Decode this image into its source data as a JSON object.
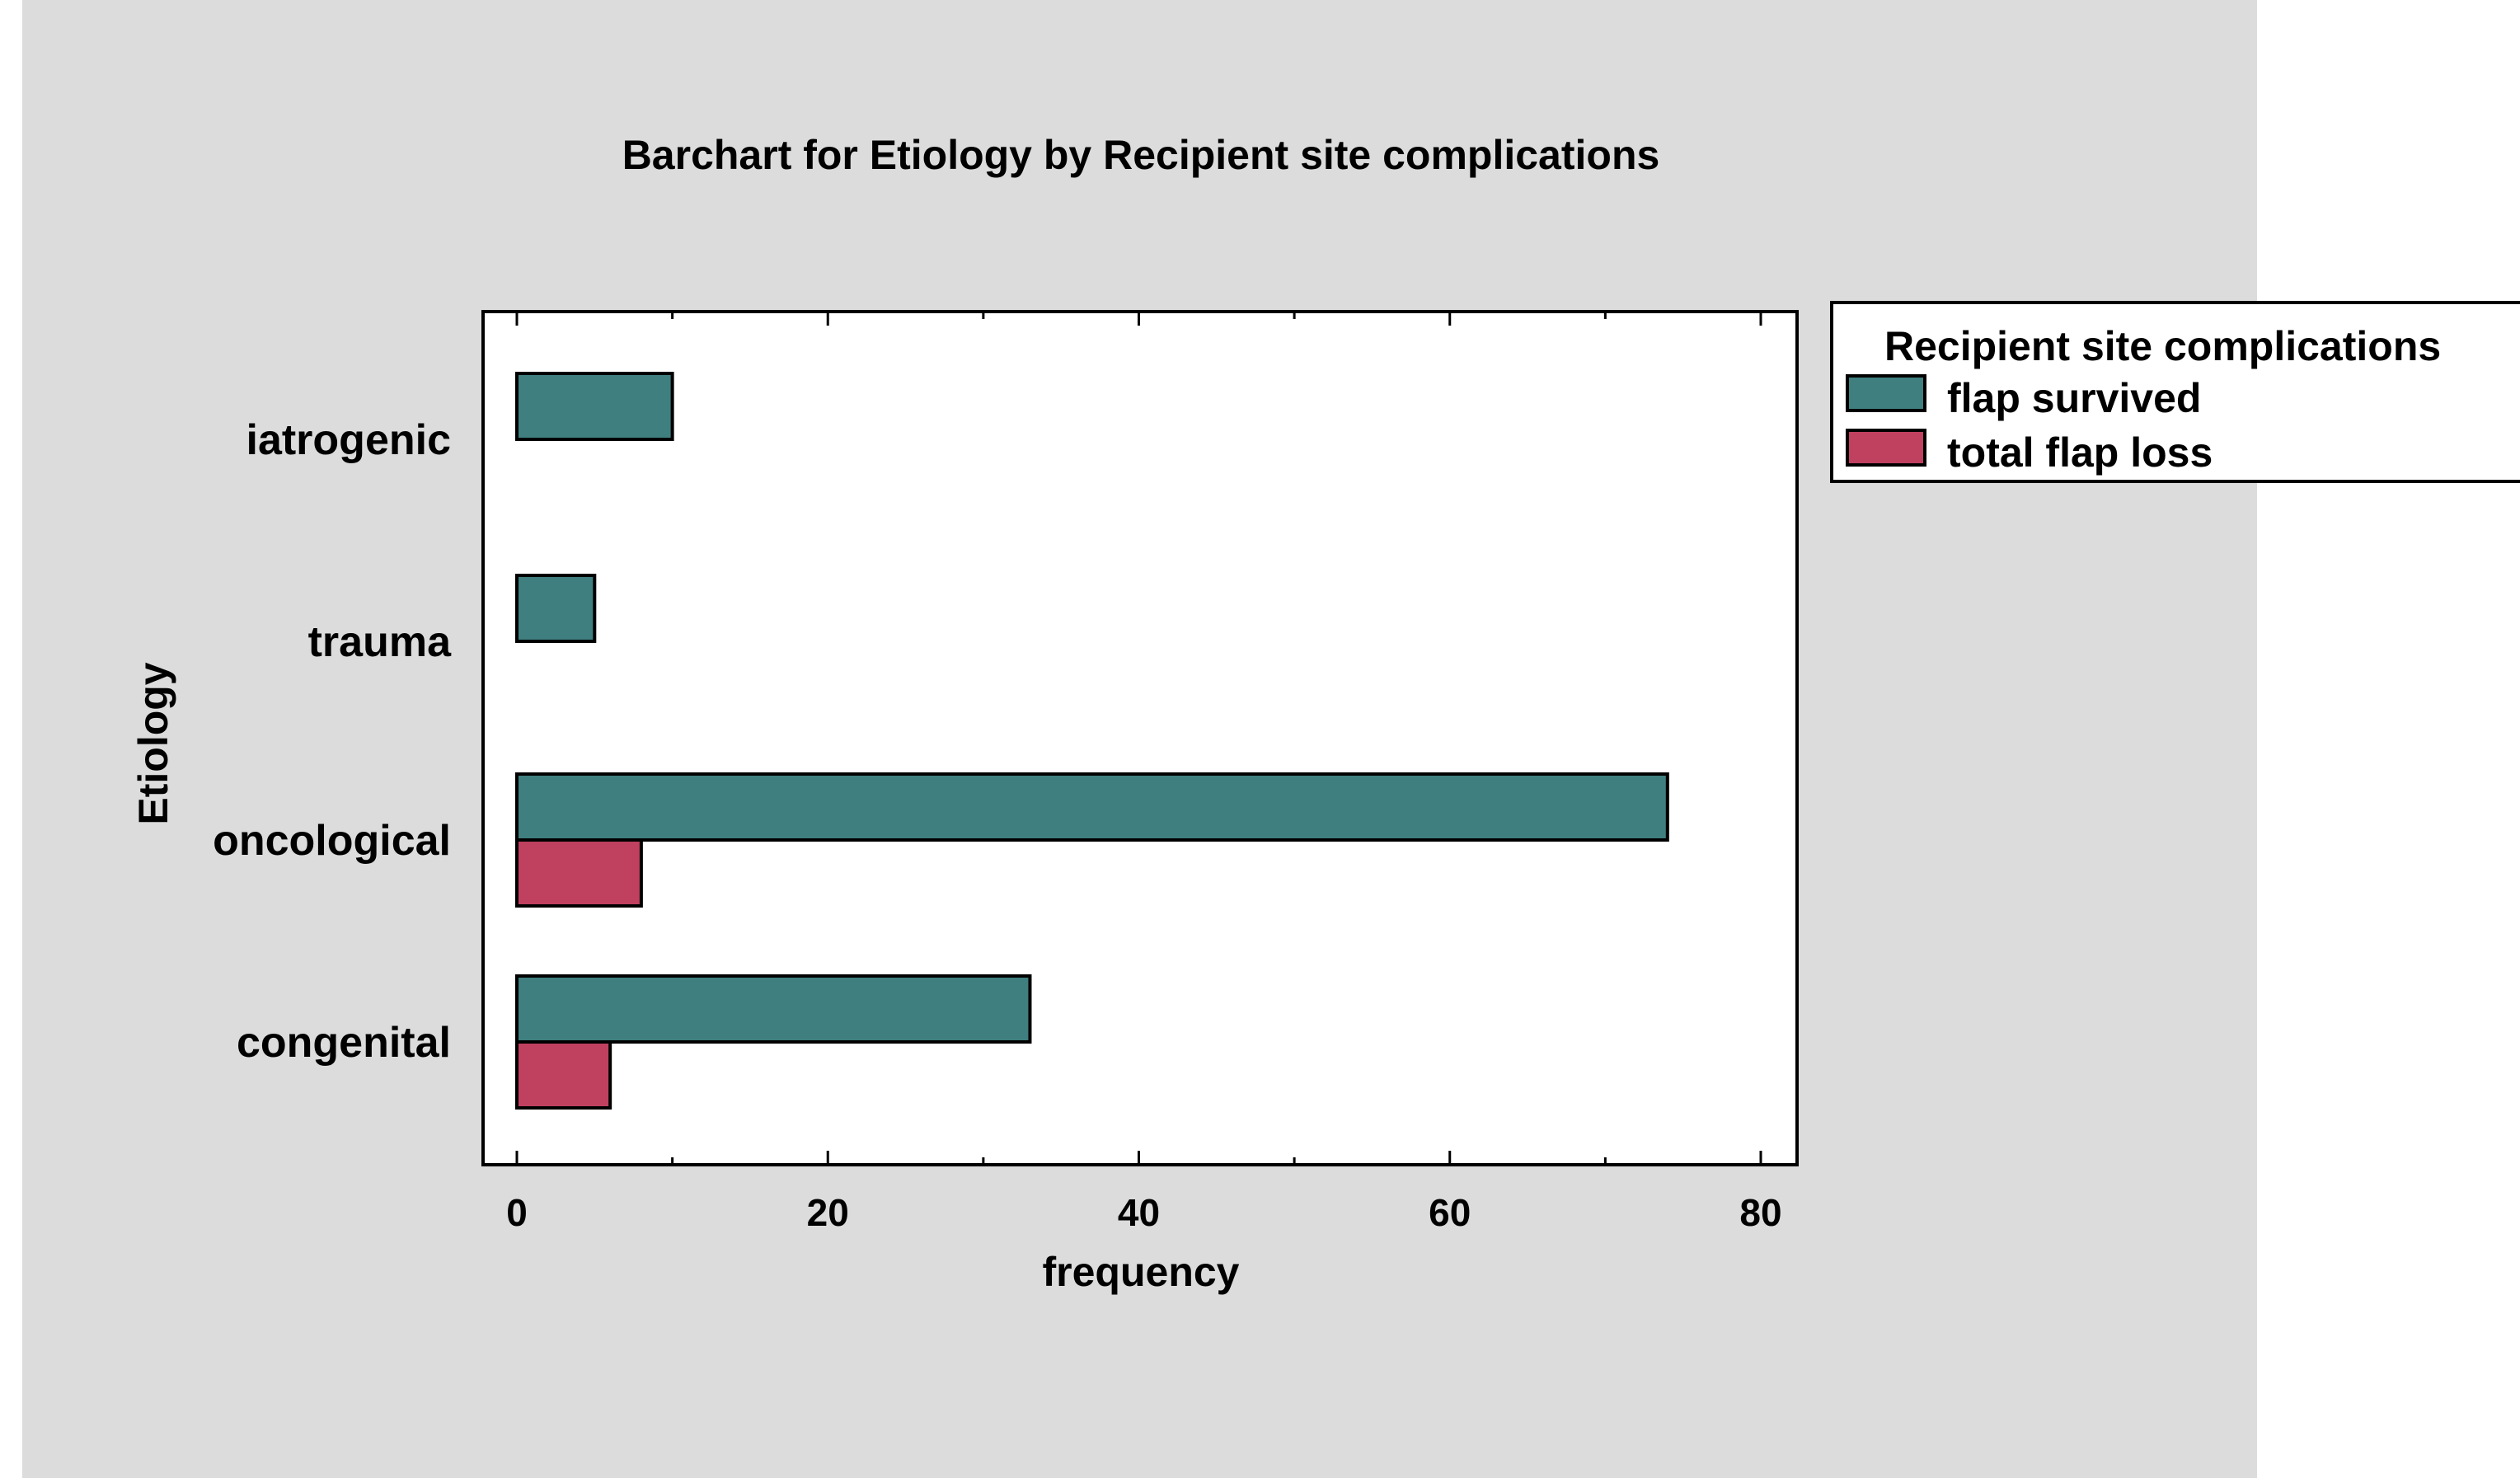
{
  "chart_data": {
    "type": "bar",
    "orientation": "horizontal",
    "title": "Barchart for Etiology by Recipient site complications",
    "xlabel": "frequency",
    "ylabel": "Etiology",
    "categories": [
      "iatrogenic",
      "trauma",
      "oncological",
      "congenital"
    ],
    "series": [
      {
        "name": "flap survived",
        "values": [
          10,
          5,
          74,
          33
        ],
        "color": "#3F7F7F"
      },
      {
        "name": "total flap loss",
        "values": [
          0,
          0,
          8,
          6
        ],
        "color": "#C04060"
      }
    ],
    "xlim": [
      0,
      80
    ],
    "xticks": [
      0,
      20,
      40,
      60,
      80
    ],
    "legend": {
      "title": "Recipient site complications",
      "placement": "right"
    },
    "grid": false,
    "background_color": "#DCDCDC"
  }
}
